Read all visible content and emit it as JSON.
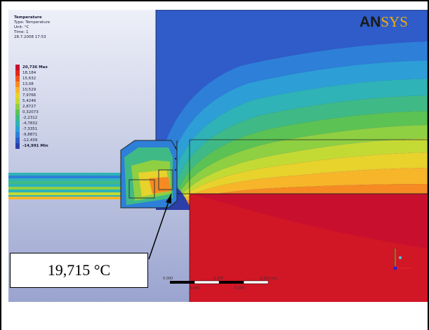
{
  "legend": {
    "title": "Temperature",
    "type": "Type: Temperature",
    "unit": "Unit: °C",
    "time": "Time: 1",
    "date": "28.7.2008 17:53",
    "entries": [
      {
        "label": "20,736 Max",
        "bold": true,
        "color": "#c8102e"
      },
      {
        "label": "18,184",
        "color": "#e4261a"
      },
      {
        "label": "15,632",
        "color": "#f0561e"
      },
      {
        "label": "13,08",
        "color": "#f58b22"
      },
      {
        "label": "10,529",
        "color": "#f7b52a"
      },
      {
        "label": "7,9766",
        "color": "#e8d22c"
      },
      {
        "label": "5,4246",
        "color": "#c4da34"
      },
      {
        "label": "2,8727",
        "color": "#8fcf42"
      },
      {
        "label": "0,32073",
        "color": "#5cc254"
      },
      {
        "label": "-2,2312",
        "color": "#3fba86"
      },
      {
        "label": "-4,7832",
        "color": "#2fb3b6"
      },
      {
        "label": "-7,3351",
        "color": "#2d9fd6"
      },
      {
        "label": "-9,8871",
        "color": "#2e7fd8"
      },
      {
        "label": "-12,439",
        "color": "#2f5cc9"
      },
      {
        "label": "-14,991 Min",
        "bold": true,
        "color": "#2c3fa8"
      }
    ]
  },
  "logo": {
    "part1": "AN",
    "part2": "SYS"
  },
  "callout": {
    "text": "19,715 °C"
  },
  "scalebar": {
    "t0": "0.000",
    "t1": "0.100",
    "t2": "0.200 (m)",
    "m1": "0.050",
    "m2": "0.150"
  }
}
